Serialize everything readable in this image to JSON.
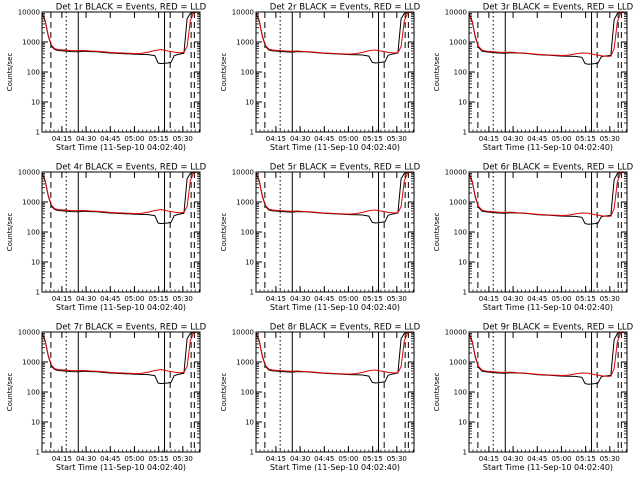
{
  "chart_data": {
    "type": "line",
    "layout": "3x3 grid",
    "ylabel": "Counts/sec",
    "xlabel": "Start Time (11-Sep-10 04:02:40)",
    "yscale": "log",
    "ylim": [
      1,
      10000
    ],
    "ytick_values": [
      1,
      10,
      100,
      1000,
      10000
    ],
    "ytick_labels": [
      "1",
      "10",
      "100",
      "1000",
      "10000"
    ],
    "xlim_minutes": [
      0,
      98
    ],
    "xtick_values": [
      12.33,
      27.33,
      42.33,
      57.33,
      72.33,
      87.33
    ],
    "xtick_labels": [
      "04:15",
      "04:30",
      "04:45",
      "05:00",
      "05:15",
      "05:30"
    ],
    "series_colors": {
      "events": "#000000",
      "lld": "#e00000"
    },
    "series_names": {
      "events": "Events",
      "lld": "LLD"
    },
    "vlines_solid": [
      22.5,
      76.0
    ],
    "vlines_dashed": [
      5.5,
      79.5,
      92.5,
      94.5
    ],
    "vlines_dotted": [
      15.0
    ],
    "panels": [
      {
        "title": "Det 1r BLACK = Events, RED = LLD",
        "events_x": [
          0,
          2,
          4,
          6,
          8,
          10,
          14,
          18,
          22,
          26,
          30,
          34,
          38,
          42,
          46,
          50,
          54,
          58,
          62,
          66,
          70,
          72,
          74,
          76,
          78,
          80,
          82,
          84,
          86,
          88,
          90,
          92,
          94,
          96,
          98
        ],
        "events_y": [
          9000,
          5000,
          1500,
          700,
          560,
          520,
          500,
          480,
          470,
          490,
          480,
          470,
          450,
          430,
          420,
          410,
          400,
          390,
          385,
          380,
          350,
          200,
          190,
          195,
          200,
          210,
          350,
          380,
          400,
          420,
          6000,
          9000,
          9500,
          9800,
          9900
        ],
        "lld_x": [
          0,
          2,
          4,
          6,
          8,
          10,
          14,
          18,
          22,
          26,
          30,
          34,
          38,
          42,
          46,
          50,
          54,
          58,
          62,
          66,
          70,
          74,
          78,
          82,
          86,
          88,
          90,
          92,
          94,
          96,
          98
        ],
        "lld_y": [
          9500,
          5200,
          1600,
          760,
          600,
          560,
          540,
          520,
          510,
          520,
          500,
          490,
          470,
          450,
          440,
          430,
          420,
          410,
          420,
          460,
          520,
          560,
          500,
          460,
          440,
          450,
          700,
          5000,
          9500,
          9800,
          9900
        ]
      },
      {
        "title": "Det 2r BLACK = Events, RED = LLD",
        "events_x": [
          0,
          2,
          4,
          6,
          8,
          10,
          14,
          18,
          22,
          26,
          30,
          34,
          38,
          42,
          46,
          50,
          54,
          58,
          62,
          66,
          70,
          72,
          74,
          76,
          78,
          80,
          82,
          84,
          86,
          88,
          90,
          92,
          94,
          96,
          98
        ],
        "events_y": [
          9000,
          5000,
          1500,
          700,
          540,
          510,
          490,
          470,
          460,
          480,
          470,
          460,
          440,
          420,
          410,
          400,
          390,
          380,
          375,
          370,
          340,
          210,
          200,
          205,
          210,
          220,
          360,
          390,
          410,
          430,
          6000,
          9000,
          9500,
          9800,
          9900
        ],
        "lld_x": [
          0,
          2,
          4,
          6,
          8,
          10,
          14,
          18,
          22,
          26,
          30,
          34,
          38,
          42,
          46,
          50,
          54,
          58,
          62,
          66,
          70,
          74,
          78,
          82,
          86,
          88,
          90,
          92,
          94,
          96,
          98
        ],
        "lld_y": [
          9500,
          5200,
          1600,
          740,
          580,
          540,
          520,
          500,
          490,
          500,
          480,
          470,
          450,
          430,
          420,
          410,
          400,
          395,
          410,
          450,
          510,
          540,
          490,
          450,
          430,
          440,
          700,
          5000,
          9500,
          9800,
          9900
        ]
      },
      {
        "title": "Det 3r BLACK = Events, RED = LLD",
        "events_x": [
          0,
          2,
          4,
          6,
          8,
          10,
          14,
          18,
          22,
          26,
          30,
          34,
          38,
          42,
          46,
          50,
          54,
          58,
          62,
          66,
          70,
          72,
          74,
          76,
          78,
          80,
          82,
          84,
          86,
          88,
          90,
          92,
          94,
          96,
          98
        ],
        "events_y": [
          9000,
          4800,
          1400,
          650,
          500,
          470,
          450,
          430,
          420,
          440,
          430,
          420,
          400,
          380,
          370,
          360,
          350,
          340,
          335,
          330,
          310,
          190,
          180,
          185,
          190,
          200,
          320,
          340,
          350,
          360,
          5500,
          8800,
          9500,
          9800,
          9900
        ],
        "lld_x": [
          0,
          2,
          4,
          6,
          8,
          10,
          14,
          18,
          22,
          26,
          30,
          34,
          38,
          42,
          46,
          50,
          54,
          58,
          62,
          66,
          70,
          74,
          78,
          82,
          86,
          88,
          90,
          92,
          94,
          96,
          98
        ],
        "lld_y": [
          9500,
          5000,
          1500,
          700,
          540,
          500,
          480,
          460,
          450,
          460,
          440,
          430,
          410,
          390,
          380,
          370,
          360,
          355,
          370,
          400,
          430,
          420,
          380,
          350,
          330,
          340,
          600,
          4500,
          9500,
          9800,
          9900
        ]
      },
      {
        "title": "Det 4r BLACK = Events, RED = LLD",
        "events_x": [
          0,
          2,
          4,
          6,
          8,
          10,
          14,
          18,
          22,
          26,
          30,
          34,
          38,
          42,
          46,
          50,
          54,
          58,
          62,
          66,
          70,
          72,
          74,
          76,
          78,
          80,
          82,
          84,
          86,
          88,
          90,
          92,
          94,
          96,
          98
        ],
        "events_y": [
          9000,
          5000,
          1500,
          700,
          560,
          520,
          500,
          480,
          470,
          490,
          480,
          470,
          450,
          430,
          420,
          410,
          400,
          390,
          385,
          380,
          350,
          200,
          190,
          195,
          200,
          210,
          350,
          380,
          400,
          420,
          6000,
          9000,
          9500,
          9800,
          9900
        ],
        "lld_x": [
          0,
          2,
          4,
          6,
          8,
          10,
          14,
          18,
          22,
          26,
          30,
          34,
          38,
          42,
          46,
          50,
          54,
          58,
          62,
          66,
          70,
          74,
          78,
          82,
          86,
          88,
          90,
          92,
          94,
          96,
          98
        ],
        "lld_y": [
          9500,
          5200,
          1600,
          760,
          600,
          560,
          540,
          520,
          510,
          520,
          500,
          490,
          470,
          450,
          440,
          430,
          420,
          410,
          420,
          460,
          520,
          560,
          500,
          460,
          440,
          450,
          700,
          5000,
          9500,
          9800,
          9900
        ]
      },
      {
        "title": "Det 5r BLACK = Events, RED = LLD",
        "events_x": [
          0,
          2,
          4,
          6,
          8,
          10,
          14,
          18,
          22,
          26,
          30,
          34,
          38,
          42,
          46,
          50,
          54,
          58,
          62,
          66,
          70,
          72,
          74,
          76,
          78,
          80,
          82,
          84,
          86,
          88,
          90,
          92,
          94,
          96,
          98
        ],
        "events_y": [
          9000,
          5000,
          1500,
          700,
          540,
          510,
          490,
          470,
          460,
          480,
          470,
          460,
          440,
          420,
          410,
          400,
          390,
          380,
          375,
          370,
          340,
          210,
          200,
          205,
          210,
          220,
          360,
          390,
          410,
          430,
          6000,
          9000,
          9500,
          9800,
          9900
        ],
        "lld_x": [
          0,
          2,
          4,
          6,
          8,
          10,
          14,
          18,
          22,
          26,
          30,
          34,
          38,
          42,
          46,
          50,
          54,
          58,
          62,
          66,
          70,
          74,
          78,
          82,
          86,
          88,
          90,
          92,
          94,
          96,
          98
        ],
        "lld_y": [
          9500,
          5200,
          1600,
          740,
          580,
          540,
          520,
          500,
          490,
          500,
          480,
          470,
          450,
          430,
          420,
          410,
          400,
          395,
          410,
          450,
          510,
          540,
          490,
          450,
          430,
          440,
          700,
          5000,
          9500,
          9800,
          9900
        ]
      },
      {
        "title": "Det 6r BLACK = Events, RED = LLD",
        "events_x": [
          0,
          2,
          4,
          6,
          8,
          10,
          14,
          18,
          22,
          26,
          30,
          34,
          38,
          42,
          46,
          50,
          54,
          58,
          62,
          66,
          70,
          72,
          74,
          76,
          78,
          80,
          82,
          84,
          86,
          88,
          90,
          92,
          94,
          96,
          98
        ],
        "events_y": [
          9000,
          4800,
          1400,
          650,
          500,
          470,
          450,
          430,
          420,
          440,
          430,
          420,
          400,
          380,
          370,
          360,
          350,
          340,
          335,
          330,
          310,
          190,
          180,
          185,
          190,
          200,
          320,
          340,
          350,
          360,
          5500,
          8800,
          9500,
          9800,
          9900
        ],
        "lld_x": [
          0,
          2,
          4,
          6,
          8,
          10,
          14,
          18,
          22,
          26,
          30,
          34,
          38,
          42,
          46,
          50,
          54,
          58,
          62,
          66,
          70,
          74,
          78,
          82,
          86,
          88,
          90,
          92,
          94,
          96,
          98
        ],
        "lld_y": [
          9500,
          5000,
          1500,
          700,
          540,
          500,
          480,
          460,
          450,
          460,
          440,
          430,
          410,
          390,
          380,
          370,
          360,
          355,
          370,
          400,
          430,
          420,
          380,
          350,
          330,
          340,
          600,
          4500,
          9500,
          9800,
          9900
        ]
      },
      {
        "title": "Det 7r BLACK = Events, RED = LLD",
        "events_x": [
          0,
          2,
          4,
          6,
          8,
          10,
          14,
          18,
          22,
          26,
          30,
          34,
          38,
          42,
          46,
          50,
          54,
          58,
          62,
          66,
          70,
          72,
          74,
          76,
          78,
          80,
          82,
          84,
          86,
          88,
          90,
          92,
          94,
          96,
          98
        ],
        "events_y": [
          9000,
          5000,
          1500,
          700,
          560,
          520,
          500,
          480,
          470,
          490,
          480,
          470,
          450,
          430,
          420,
          410,
          400,
          390,
          385,
          380,
          350,
          200,
          190,
          195,
          200,
          210,
          350,
          380,
          400,
          420,
          6000,
          9000,
          9500,
          9800,
          9900
        ],
        "lld_x": [
          0,
          2,
          4,
          6,
          8,
          10,
          14,
          18,
          22,
          26,
          30,
          34,
          38,
          42,
          46,
          50,
          54,
          58,
          62,
          66,
          70,
          74,
          78,
          82,
          86,
          88,
          90,
          92,
          94,
          96,
          98
        ],
        "lld_y": [
          9500,
          5200,
          1600,
          760,
          600,
          560,
          540,
          520,
          510,
          520,
          500,
          490,
          470,
          450,
          440,
          430,
          420,
          410,
          420,
          460,
          520,
          560,
          500,
          460,
          440,
          450,
          700,
          5000,
          9500,
          9800,
          9900
        ]
      },
      {
        "title": "Det 8r BLACK = Events, RED = LLD",
        "events_x": [
          0,
          2,
          4,
          6,
          8,
          10,
          14,
          18,
          22,
          26,
          30,
          34,
          38,
          42,
          46,
          50,
          54,
          58,
          62,
          66,
          70,
          72,
          74,
          76,
          78,
          80,
          82,
          84,
          86,
          88,
          90,
          92,
          94,
          96,
          98
        ],
        "events_y": [
          9000,
          5000,
          1500,
          700,
          540,
          510,
          490,
          470,
          460,
          480,
          470,
          460,
          440,
          420,
          410,
          400,
          390,
          380,
          375,
          370,
          340,
          210,
          200,
          205,
          210,
          220,
          360,
          390,
          410,
          430,
          6000,
          9000,
          9500,
          9800,
          9900
        ],
        "lld_x": [
          0,
          2,
          4,
          6,
          8,
          10,
          14,
          18,
          22,
          26,
          30,
          34,
          38,
          42,
          46,
          50,
          54,
          58,
          62,
          66,
          70,
          74,
          78,
          82,
          86,
          88,
          90,
          92,
          94,
          96,
          98
        ],
        "lld_y": [
          9500,
          5200,
          1600,
          740,
          580,
          540,
          520,
          500,
          490,
          500,
          480,
          470,
          450,
          430,
          420,
          410,
          400,
          395,
          410,
          450,
          510,
          540,
          490,
          450,
          430,
          440,
          700,
          5000,
          9500,
          9800,
          9900
        ]
      },
      {
        "title": "Det 9r BLACK = Events, RED = LLD",
        "events_x": [
          0,
          2,
          4,
          6,
          8,
          10,
          14,
          18,
          22,
          26,
          30,
          34,
          38,
          42,
          46,
          50,
          54,
          58,
          62,
          66,
          70,
          72,
          74,
          76,
          78,
          80,
          82,
          84,
          86,
          88,
          90,
          92,
          94,
          96,
          98
        ],
        "events_y": [
          9000,
          4800,
          1400,
          650,
          500,
          470,
          450,
          430,
          420,
          440,
          430,
          420,
          400,
          380,
          370,
          360,
          350,
          340,
          335,
          330,
          310,
          190,
          180,
          185,
          190,
          200,
          320,
          340,
          350,
          360,
          5500,
          8800,
          9500,
          9800,
          9900
        ],
        "lld_x": [
          0,
          2,
          4,
          6,
          8,
          10,
          14,
          18,
          22,
          26,
          30,
          34,
          38,
          42,
          46,
          50,
          54,
          58,
          62,
          66,
          70,
          74,
          78,
          82,
          86,
          88,
          90,
          92,
          94,
          96,
          98
        ],
        "lld_y": [
          9500,
          5000,
          1500,
          700,
          540,
          500,
          480,
          460,
          450,
          460,
          440,
          430,
          410,
          390,
          380,
          370,
          360,
          355,
          370,
          400,
          430,
          420,
          380,
          350,
          330,
          340,
          600,
          4500,
          9500,
          9800,
          9900
        ]
      }
    ]
  }
}
